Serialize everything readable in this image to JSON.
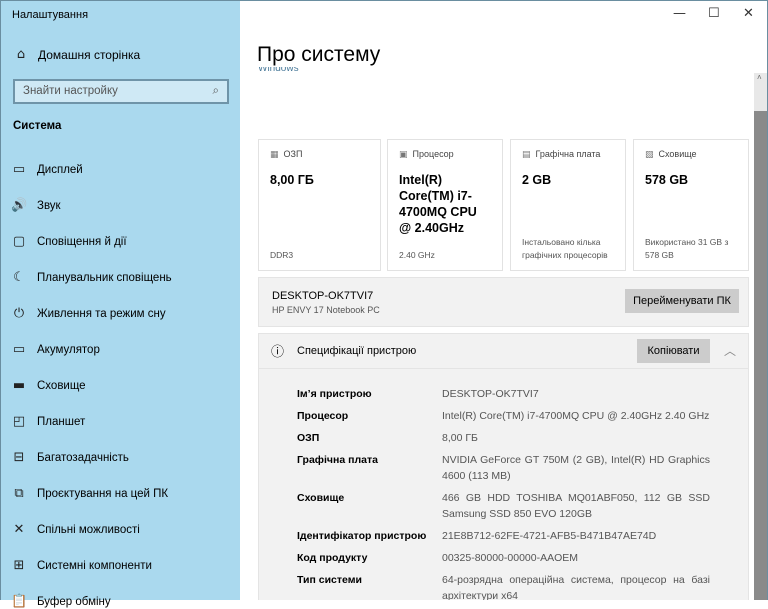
{
  "window": {
    "title": "Налаштування",
    "minimize": "—",
    "maximize": "☐",
    "close": "✕"
  },
  "sidebar": {
    "home": {
      "label": "Домашня сторінка",
      "icon": "home-icon"
    },
    "search": {
      "placeholder": "Знайти настройку",
      "icon": "search-icon"
    },
    "section": "Система",
    "items": [
      {
        "label": "Дисплей",
        "icon": "display-icon",
        "glyph": "▭"
      },
      {
        "label": "Звук",
        "icon": "speaker-icon",
        "glyph": "🔊"
      },
      {
        "label": "Сповіщення й дії",
        "icon": "notification-icon",
        "glyph": "▢"
      },
      {
        "label": "Планувальник сповіщень",
        "icon": "moon-icon",
        "glyph": "☾"
      },
      {
        "label": "Живлення та режим сну",
        "icon": "power-icon",
        "glyph": "⏻"
      },
      {
        "label": "Акумулятор",
        "icon": "battery-icon",
        "glyph": "▭"
      },
      {
        "label": "Сховище",
        "icon": "storage-icon",
        "glyph": "▬"
      },
      {
        "label": "Планшет",
        "icon": "tablet-icon",
        "glyph": "◰"
      },
      {
        "label": "Багатозадачність",
        "icon": "multitasking-icon",
        "glyph": "⊟"
      },
      {
        "label": "Проєктування на цей ПК",
        "icon": "projecting-icon",
        "glyph": "⧉"
      },
      {
        "label": "Спільні можливості",
        "icon": "shared-icon",
        "glyph": "✕"
      },
      {
        "label": "Системні компоненти",
        "icon": "components-icon",
        "glyph": "⊞"
      },
      {
        "label": "Буфер обміну",
        "icon": "clipboard-icon",
        "glyph": "📋"
      }
    ]
  },
  "main": {
    "title": "Про систему",
    "cut_text": "Windows",
    "cards": [
      {
        "title": "ОЗП",
        "value": "8,00 ГБ",
        "sub": "DDR3",
        "icon": "ram-icon",
        "glyph": "▦"
      },
      {
        "title": "Процесор",
        "value": "Intel(R) Core(TM) i7-4700MQ CPU @ 2.40GHz",
        "sub": "2.40 GHz",
        "icon": "cpu-icon",
        "glyph": "▣"
      },
      {
        "title": "Графічна плата",
        "value": "2 GB",
        "sub": "Інстальовано кілька графічних процесорів",
        "icon": "gpu-icon",
        "glyph": "▤"
      },
      {
        "title": "Сховище",
        "value": "578 GB",
        "sub": "Використано 31 GB з 578 GB",
        "icon": "storage-icon",
        "glyph": "▧"
      }
    ],
    "pc": {
      "name": "DESKTOP-OK7TVI7",
      "model": "HP ENVY 17 Notebook PC",
      "rename": "Перейменувати ПК"
    },
    "specs": {
      "title": "Специфікації пристрою",
      "copy": "Копіювати",
      "rows": [
        {
          "k": "Ім’я пристрою",
          "v": "DESKTOP-OK7TVI7"
        },
        {
          "k": "Процесор",
          "v": "Intel(R) Core(TM) i7-4700MQ CPU @ 2.40GHz   2.40 GHz"
        },
        {
          "k": "ОЗП",
          "v": "8,00 ГБ"
        },
        {
          "k": "Графічна плата",
          "v": "NVIDIA GeForce GT 750M (2 GB), Intel(R) HD Graphics 4600 (113 MB)"
        },
        {
          "k": "Сховище",
          "v": "466 GB HDD TOSHIBA MQ01ABF050, 112 GB SSD Samsung SSD 850 EVO 120GB"
        },
        {
          "k": "Ідентифікатор пристрою",
          "v": "21E8B712-62FE-4721-AFB5-B471B47AE74D"
        },
        {
          "k": "Код продукту",
          "v": "00325-80000-00000-AAOEM"
        },
        {
          "k": "Тип системи",
          "v": "64-розрядна операційна система, процесор на базі архітектури x64"
        }
      ]
    }
  }
}
